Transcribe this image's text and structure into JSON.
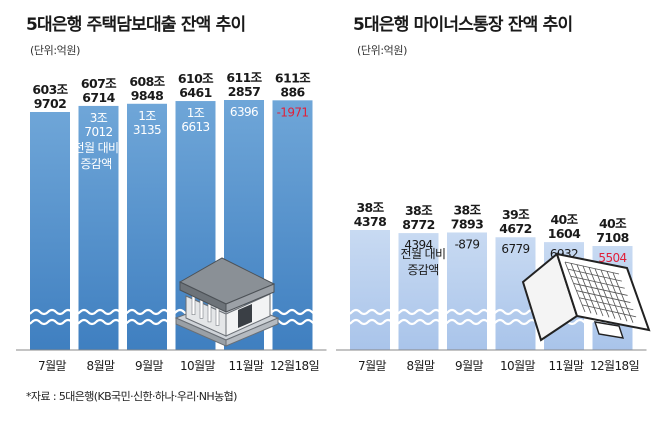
{
  "source": "*자료 : 5대은행(KB국민·신한·하나·우리·NH농협)",
  "chart_data": [
    {
      "type": "bar",
      "title": "5대은행 주택담보대출 잔액 추이",
      "unit_label": "(단위:억원)",
      "categories": [
        "7월말",
        "8월말",
        "9월말",
        "10월말",
        "11월말",
        "12월18일"
      ],
      "values": [
        6039702,
        6076714,
        6089848,
        6106461,
        6112857,
        6110886
      ],
      "value_labels": [
        [
          "603조",
          "9702"
        ],
        [
          "607조",
          "6714"
        ],
        [
          "608조",
          "9848"
        ],
        [
          "610조",
          "6461"
        ],
        [
          "611조",
          "2857"
        ],
        [
          "611조",
          "886"
        ]
      ],
      "change_labels": [
        [],
        [
          "3조",
          "7012"
        ],
        [
          "1조",
          "3135"
        ],
        [
          "1조",
          "6613"
        ],
        [
          "6396"
        ],
        [
          "-1971"
        ]
      ],
      "change_values": [
        null,
        37012,
        13135,
        16613,
        6396,
        -1971
      ],
      "change_note": [
        "전월 대비",
        "증감액"
      ],
      "y_axis_broken": true,
      "colors": {
        "bar_top": "#6fa6d8",
        "bar_bottom": "#3f7fc0",
        "negative": "#e0203a",
        "change_text": "#ffffff"
      }
    },
    {
      "type": "bar",
      "title": "5대은행 마이너스통장 잔액 추이",
      "unit_label": "(단위:억원)",
      "categories": [
        "7월말",
        "8월말",
        "9월말",
        "10월말",
        "11월말",
        "12월18일"
      ],
      "values": [
        384378,
        388772,
        387893,
        394672,
        401604,
        407108
      ],
      "value_labels": [
        [
          "38조",
          "4378"
        ],
        [
          "38조",
          "8772"
        ],
        [
          "38조",
          "7893"
        ],
        [
          "39조",
          "4672"
        ],
        [
          "40조",
          "1604"
        ],
        [
          "40조",
          "7108"
        ]
      ],
      "change_labels": [
        [],
        [
          "4394"
        ],
        [
          "-879"
        ],
        [
          "6779"
        ],
        [
          "6932"
        ],
        [
          "5504"
        ]
      ],
      "change_values": [
        null,
        4394,
        -879,
        6779,
        6932,
        5504
      ],
      "change_note": [
        "전월 대비",
        "증감액"
      ],
      "y_axis_broken": true,
      "colors": {
        "bar_top": "#c8daf2",
        "bar_bottom": "#a9c4ea",
        "negative": "#1a1a1a",
        "change_text": "#1a1a1a",
        "highlight": "#e0203a"
      }
    }
  ]
}
